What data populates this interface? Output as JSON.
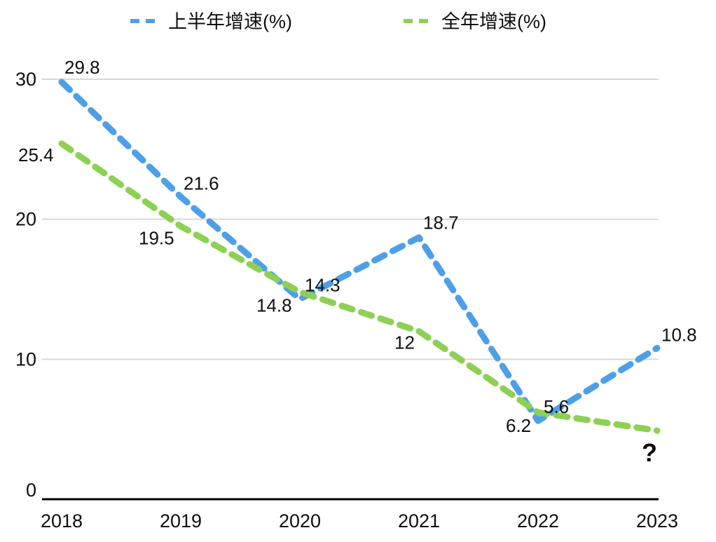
{
  "chart_data": {
    "type": "line",
    "title": "",
    "xlabel": "",
    "ylabel": "",
    "categories": [
      "2018",
      "2019",
      "2020",
      "2021",
      "2022",
      "2023"
    ],
    "series": [
      {
        "name": "上半年增速(%)",
        "values": [
          29.8,
          21.6,
          14.3,
          18.7,
          5.6,
          10.8
        ],
        "labels": [
          "29.8",
          "21.6",
          "14.3",
          "18.7",
          "5.6",
          "10.8"
        ],
        "color": "#4da0e8",
        "label_color": "#2d54d8",
        "style": "dashed"
      },
      {
        "name": "全年增速(%)",
        "values": [
          25.4,
          19.5,
          14.8,
          12,
          6.2,
          4.9
        ],
        "labels": [
          "25.4",
          "19.5",
          "14.8",
          "12",
          "6.2",
          "?"
        ],
        "color": "#8ed054",
        "label_color": "#e84c2e",
        "style": "dashed"
      }
    ],
    "ylim": [
      0,
      30
    ],
    "yticks": [
      0,
      10,
      20,
      30
    ],
    "grid": true,
    "legend_position": "top",
    "label_offsets": [
      [
        [
          4,
          -12
        ],
        [
          4,
          -10
        ],
        [
          7,
          -11
        ],
        [
          6,
          -12
        ],
        [
          8,
          -11
        ],
        [
          6,
          -10
        ]
      ],
      [
        [
          -62,
          25
        ],
        [
          -60,
          26
        ],
        [
          -62,
          28
        ],
        [
          -35,
          25
        ],
        [
          -46,
          28
        ],
        [
          -22,
          44
        ]
      ]
    ],
    "colors": {
      "gridline": "#d8d8d8",
      "axis": "#000000",
      "tick_text": "#0f0f0f"
    }
  }
}
